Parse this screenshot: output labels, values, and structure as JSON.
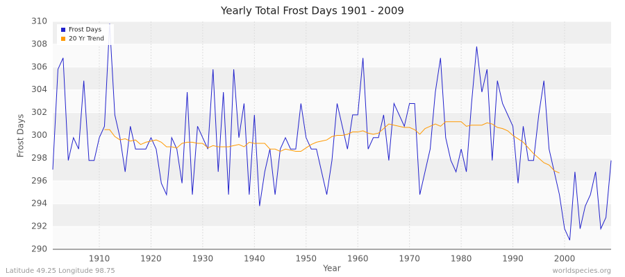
{
  "chart_data": {
    "type": "line",
    "title": "Yearly Total Frost Days 1901 - 2009",
    "x_label": "Year",
    "y_label": "Frost Days",
    "footer_left": "Latitude 49.25 Longitude 98.75",
    "footer_right": "worldspecies.org",
    "x": [
      1901,
      1902,
      1903,
      1904,
      1905,
      1906,
      1907,
      1908,
      1909,
      1910,
      1911,
      1912,
      1913,
      1914,
      1915,
      1916,
      1917,
      1918,
      1919,
      1920,
      1921,
      1922,
      1923,
      1924,
      1925,
      1926,
      1927,
      1928,
      1929,
      1930,
      1931,
      1932,
      1933,
      1934,
      1935,
      1936,
      1937,
      1938,
      1939,
      1940,
      1941,
      1942,
      1943,
      1944,
      1945,
      1946,
      1947,
      1948,
      1949,
      1950,
      1951,
      1952,
      1953,
      1954,
      1955,
      1956,
      1957,
      1958,
      1959,
      1960,
      1961,
      1962,
      1963,
      1964,
      1965,
      1966,
      1967,
      1968,
      1969,
      1970,
      1971,
      1972,
      1973,
      1974,
      1975,
      1976,
      1977,
      1978,
      1979,
      1980,
      1981,
      1982,
      1983,
      1984,
      1985,
      1986,
      1987,
      1988,
      1989,
      1990,
      1991,
      1992,
      1993,
      1994,
      1995,
      1996,
      1997,
      1998,
      1999,
      2000,
      2001,
      2002,
      2003,
      2004,
      2005,
      2006,
      2007,
      2008,
      2009
    ],
    "series": [
      {
        "name": "Frost Days",
        "color": "#2222cc",
        "values": [
          297,
          305.8,
          306.8,
          297.8,
          299.8,
          298.8,
          304.8,
          297.8,
          297.8,
          299.8,
          300.8,
          309.8,
          301.8,
          299.8,
          296.8,
          300.8,
          298.8,
          298.8,
          298.8,
          299.8,
          298.8,
          295.8,
          294.8,
          299.8,
          298.8,
          295.8,
          303.8,
          294.8,
          300.8,
          299.8,
          298.8,
          305.8,
          296.8,
          303.8,
          294.8,
          305.8,
          299.8,
          302.8,
          294.8,
          301.8,
          293.8,
          296.8,
          298.8,
          294.8,
          298.8,
          299.8,
          298.8,
          298.8,
          302.8,
          299.8,
          298.8,
          298.8,
          296.8,
          294.8,
          297.8,
          302.8,
          300.8,
          298.8,
          301.8,
          301.8,
          306.8,
          298.8,
          299.8,
          299.8,
          301.8,
          297.8,
          302.8,
          301.8,
          300.8,
          302.8,
          302.8,
          294.8,
          296.8,
          298.8,
          303.8,
          306.8,
          299.8,
          297.8,
          296.8,
          298.8,
          296.8,
          302.8,
          307.8,
          303.8,
          305.8,
          297.8,
          304.8,
          302.8,
          301.8,
          300.8,
          295.8,
          300.8,
          297.8,
          297.8,
          301.8,
          304.8,
          298.8,
          296.8,
          294.8,
          291.8,
          290.8,
          296.8,
          291.8,
          293.8,
          294.8,
          296.8,
          291.8,
          292.8,
          297.8
        ]
      },
      {
        "name": "20 Yr Trend",
        "color": "#ff9900",
        "values": [
          null,
          null,
          null,
          null,
          null,
          null,
          null,
          null,
          null,
          null,
          300.5,
          300.5,
          299.9,
          299.6,
          299.7,
          299.5,
          299.6,
          299.2,
          299.4,
          299.5,
          299.6,
          299.4,
          299.0,
          299.0,
          298.9,
          299.3,
          299.4,
          299.4,
          299.3,
          299.3,
          298.9,
          299.1,
          299.0,
          299.0,
          299.0,
          299.1,
          299.2,
          299.0,
          299.4,
          299.3,
          299.3,
          299.3,
          298.8,
          298.8,
          298.6,
          298.8,
          298.7,
          298.6,
          298.6,
          298.9,
          299.2,
          299.4,
          299.5,
          299.6,
          299.9,
          300.0,
          300.0,
          300.1,
          300.3,
          300.3,
          300.4,
          300.2,
          300.1,
          300.2,
          300.6,
          301.0,
          300.9,
          300.8,
          300.7,
          300.7,
          300.5,
          300.1,
          300.6,
          300.8,
          301.0,
          300.8,
          301.2,
          301.2,
          301.2,
          301.2,
          300.8,
          300.9,
          300.9,
          300.9,
          301.1,
          301.0,
          300.7,
          300.6,
          300.4,
          300.0,
          299.7,
          299.4,
          298.9,
          298.4,
          298.0,
          297.6,
          297.4,
          296.9,
          296.7,
          null,
          null,
          null,
          null,
          null,
          null,
          null,
          null,
          null,
          null
        ]
      }
    ],
    "xlim": [
      1901,
      2009
    ],
    "xticks": [
      1910,
      1920,
      1930,
      1940,
      1950,
      1960,
      1970,
      1980,
      1990,
      2000
    ],
    "ylim": [
      290,
      310
    ],
    "yticks": [
      290,
      292,
      294,
      296,
      298,
      300,
      302,
      304,
      306,
      308,
      310
    ],
    "grid": true,
    "legend": "top-left"
  }
}
